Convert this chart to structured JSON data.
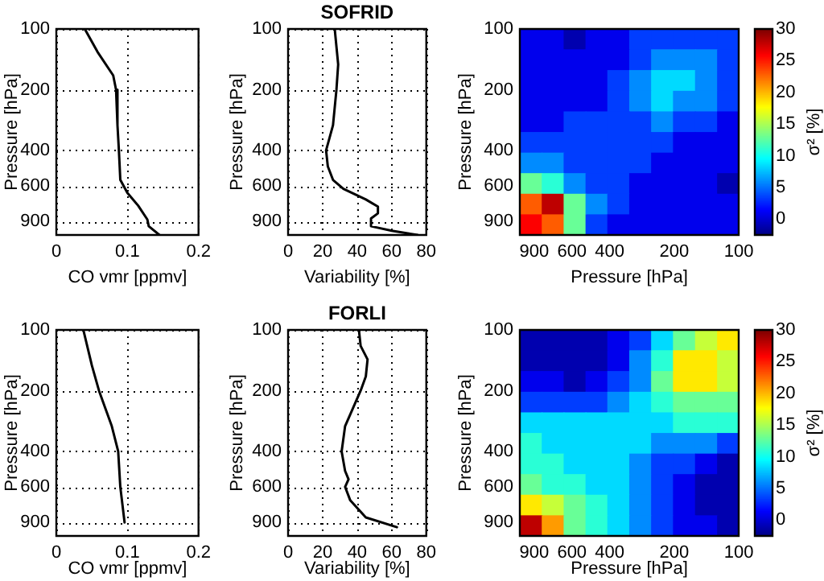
{
  "chart_data": [
    {
      "type": "line",
      "xlabel": "CO vmr [ppmv]",
      "ylabel": "Pressure [hPa]",
      "xlim": [
        0,
        0.2
      ],
      "xticks": [
        0,
        0.1,
        0.2
      ],
      "ylim": [
        1050,
        100
      ],
      "yticks": [
        100,
        200,
        400,
        600,
        900
      ],
      "log": "y",
      "grid": true,
      "series": [
        {
          "color": "#000000",
          "x": [
            0.04,
            0.058,
            0.08,
            0.084,
            0.086,
            0.088,
            0.09,
            0.1,
            0.115,
            0.128,
            0.13,
            0.145
          ],
          "values": [
            100,
            130,
            170,
            200,
            300,
            400,
            560,
            650,
            750,
            880,
            950,
            1050
          ]
        }
      ]
    },
    {
      "type": "line",
      "title": "SOFRID",
      "xlabel": "Variability [%]",
      "ylabel": "Pressure [hPa]",
      "xlim": [
        0,
        80
      ],
      "xticks": [
        0,
        20,
        40,
        60,
        80
      ],
      "ylim": [
        1050,
        100
      ],
      "yticks": [
        100,
        200,
        400,
        600,
        900
      ],
      "log": "y",
      "grid": true,
      "series": [
        {
          "color": "#000000",
          "x": [
            27,
            29,
            28,
            26,
            22,
            23,
            26,
            32,
            45,
            52,
            52,
            48,
            48,
            60,
            75
          ],
          "values": [
            100,
            150,
            200,
            300,
            400,
            480,
            560,
            620,
            700,
            760,
            820,
            870,
            950,
            1000,
            1050
          ]
        }
      ]
    },
    {
      "type": "heatmap",
      "xlabel": "Pressure [hPa]",
      "ylabel": "Pressure [hPa]",
      "clabel": "σ² [%]",
      "xlim": [
        1050,
        100
      ],
      "xticks": [
        900,
        600,
        400,
        200,
        100
      ],
      "ylim": [
        1050,
        100
      ],
      "yticks": [
        100,
        200,
        400,
        600,
        900
      ],
      "log": "xy",
      "clim": [
        -2.5,
        30
      ],
      "cticks": [
        0,
        5,
        10,
        15,
        20,
        25,
        30
      ],
      "x": [
        933,
        738,
        583,
        461,
        365,
        288,
        228,
        180,
        142,
        112
      ],
      "y": [
        112,
        142,
        180,
        228,
        288,
        365,
        461,
        583,
        738,
        933
      ],
      "cells": [
        [
          1,
          1,
          -1,
          1,
          1,
          3.5,
          3.5,
          3.5,
          3.5,
          3.5
        ],
        [
          1,
          1,
          1,
          1,
          1,
          3.5,
          6,
          6,
          6,
          3.5
        ],
        [
          1,
          1,
          1,
          1,
          3.5,
          6,
          8.5,
          8.5,
          6,
          3.5
        ],
        [
          1,
          1,
          1,
          1,
          3.5,
          6,
          8.5,
          6,
          6,
          3.5
        ],
        [
          1,
          1,
          3.5,
          3.5,
          3.5,
          3.5,
          6,
          3.5,
          3.5,
          1
        ],
        [
          3.5,
          3.5,
          3.5,
          3.5,
          3.5,
          3.5,
          3.5,
          1,
          1,
          1
        ],
        [
          6,
          6,
          3.5,
          3.5,
          3.5,
          3.5,
          1,
          1,
          1,
          1
        ],
        [
          13,
          11,
          6,
          3.5,
          3.5,
          1,
          1,
          1,
          1,
          -1
        ],
        [
          23,
          28,
          13,
          6,
          3.5,
          1,
          1,
          1,
          1,
          1
        ],
        [
          26,
          23,
          13,
          3.5,
          1,
          1,
          1,
          1,
          1,
          1
        ]
      ]
    },
    {
      "type": "line",
      "xlabel": "CO vmr [ppmv]",
      "ylabel": "Pressure [hPa]",
      "xlim": [
        0,
        0.2
      ],
      "xticks": [
        0,
        0.1,
        0.2
      ],
      "ylim": [
        1050,
        100
      ],
      "yticks": [
        100,
        200,
        400,
        600,
        900
      ],
      "log": "y",
      "grid": true,
      "series": [
        {
          "color": "#000000",
          "x": [
            0.038,
            0.05,
            0.06,
            0.078,
            0.087,
            0.09,
            0.096
          ],
          "values": [
            100,
            150,
            200,
            300,
            400,
            600,
            900
          ]
        }
      ]
    },
    {
      "type": "line",
      "title": "FORLI",
      "xlabel": "Variability [%]",
      "ylabel": "Pressure [hPa]",
      "xlim": [
        0,
        80
      ],
      "xticks": [
        0,
        20,
        40,
        60,
        80
      ],
      "ylim": [
        1050,
        100
      ],
      "yticks": [
        100,
        200,
        400,
        600,
        900
      ],
      "log": "y",
      "grid": true,
      "series": [
        {
          "color": "#000000",
          "x": [
            41,
            42,
            46,
            45,
            42,
            33,
            31,
            33,
            35,
            33,
            36,
            45,
            63
          ],
          "values": [
            100,
            120,
            140,
            170,
            200,
            300,
            400,
            500,
            550,
            600,
            700,
            850,
            950
          ]
        }
      ]
    },
    {
      "type": "heatmap",
      "xlabel": "Pressure [hPa]",
      "ylabel": "Pressure [hPa]",
      "clabel": "σ² [%]",
      "xlim": [
        1050,
        100
      ],
      "xticks": [
        900,
        600,
        400,
        200,
        100
      ],
      "ylim": [
        1050,
        100
      ],
      "yticks": [
        100,
        200,
        400,
        600,
        900
      ],
      "log": "xy",
      "clim": [
        -2.5,
        30
      ],
      "cticks": [
        0,
        5,
        10,
        15,
        20,
        25,
        30
      ],
      "x": [
        933,
        738,
        583,
        461,
        365,
        288,
        228,
        180,
        142,
        112
      ],
      "y": [
        112,
        142,
        180,
        228,
        288,
        365,
        461,
        583,
        738,
        933
      ],
      "cells": [
        [
          -1,
          -1,
          -1,
          -1,
          1,
          3.5,
          8.5,
          13,
          16,
          18.5
        ],
        [
          -1,
          -1,
          -1,
          -1,
          1,
          6,
          11,
          18.5,
          18.5,
          16
        ],
        [
          1,
          1,
          -1,
          1,
          3.5,
          6,
          13,
          18.5,
          18.5,
          16
        ],
        [
          3.5,
          3.5,
          3.5,
          3.5,
          6,
          8.5,
          11,
          13,
          13,
          13
        ],
        [
          8.5,
          8.5,
          8.5,
          8.5,
          8.5,
          8.5,
          8.5,
          11,
          11,
          11
        ],
        [
          11,
          8.5,
          8.5,
          8.5,
          8.5,
          8.5,
          6,
          6,
          6,
          3.5
        ],
        [
          11,
          11,
          8.5,
          8.5,
          8.5,
          6,
          3.5,
          3.5,
          1,
          -1
        ],
        [
          13,
          11,
          11,
          8.5,
          8.5,
          6,
          3.5,
          1,
          -1,
          -1
        ],
        [
          18.5,
          16,
          13,
          11,
          8.5,
          6,
          3.5,
          1,
          -1,
          -1
        ],
        [
          28,
          21,
          13,
          11,
          8.5,
          6,
          3.5,
          1,
          1,
          -1
        ]
      ]
    }
  ]
}
